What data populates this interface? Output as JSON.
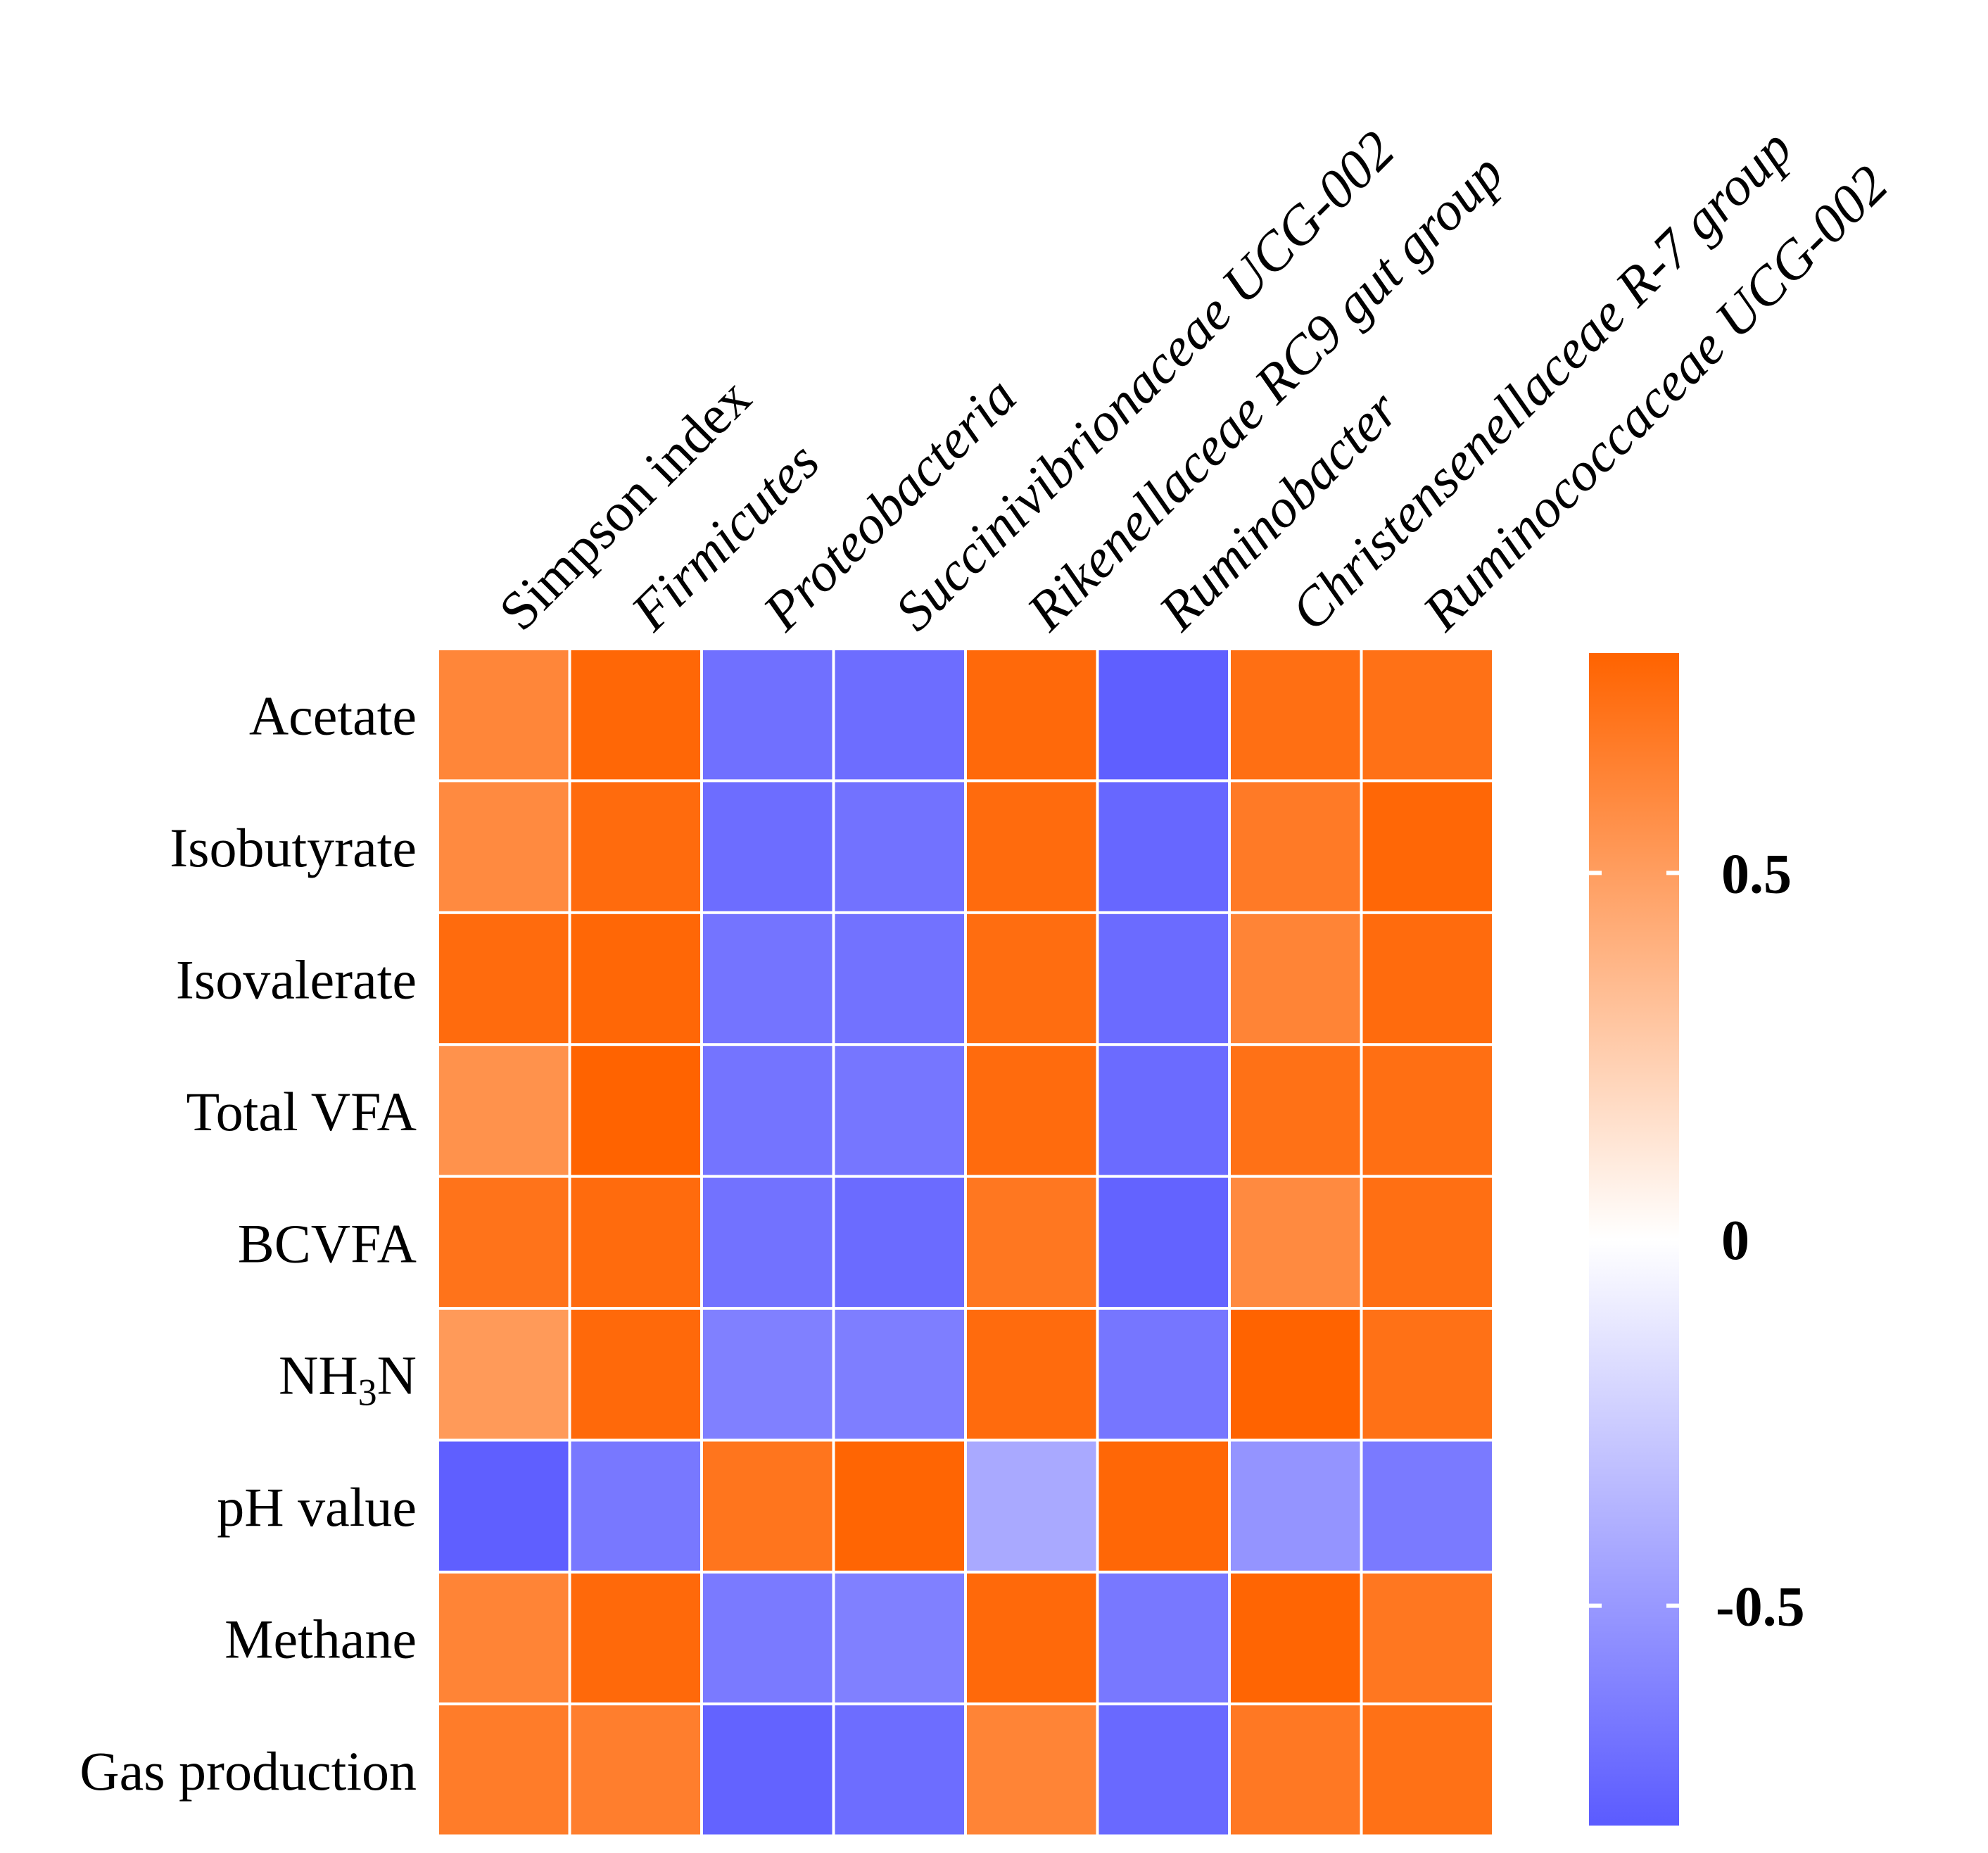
{
  "chart_data": {
    "type": "heatmap",
    "title": "",
    "columns": [
      {
        "label": "Simpson index",
        "italic": false
      },
      {
        "label": "Firmicutes",
        "italic": true
      },
      {
        "label": "Proteobacteria",
        "italic": true
      },
      {
        "label": "Succinivibrionaceae UCG-002",
        "italic": true
      },
      {
        "label": "Rikenellaceae RC9 gut group",
        "italic": true
      },
      {
        "label": "Ruminobacter",
        "italic": true
      },
      {
        "label": "Christensenellaceae R-7 group",
        "italic": true
      },
      {
        "label": "Ruminococcaceae UCG-002",
        "italic": true
      }
    ],
    "rows": [
      {
        "label": "Acetate"
      },
      {
        "label": "Isobutyrate"
      },
      {
        "label": "Isovalerate"
      },
      {
        "label": "Total VFA"
      },
      {
        "label": "BCVFA"
      },
      {
        "label": "NH",
        "sub": "3",
        "tail": "N"
      },
      {
        "label": "pH value"
      },
      {
        "label": "Methane"
      },
      {
        "label": "Gas production"
      }
    ],
    "values": [
      [
        0.62,
        0.78,
        -0.7,
        -0.71,
        0.77,
        -0.78,
        0.74,
        0.73
      ],
      [
        0.6,
        0.76,
        -0.71,
        -0.69,
        0.76,
        -0.74,
        0.68,
        0.78
      ],
      [
        0.76,
        0.78,
        -0.68,
        -0.69,
        0.75,
        -0.72,
        0.63,
        0.76
      ],
      [
        0.56,
        0.82,
        -0.68,
        -0.67,
        0.76,
        -0.72,
        0.73,
        0.74
      ],
      [
        0.72,
        0.76,
        -0.69,
        -0.72,
        0.7,
        -0.76,
        0.6,
        0.74
      ],
      [
        0.52,
        0.77,
        -0.62,
        -0.63,
        0.76,
        -0.67,
        0.8,
        0.73
      ],
      [
        -0.78,
        -0.66,
        0.71,
        0.79,
        -0.42,
        0.78,
        -0.52,
        -0.65
      ],
      [
        0.63,
        0.77,
        -0.65,
        -0.62,
        0.77,
        -0.66,
        0.79,
        0.7
      ],
      [
        0.67,
        0.66,
        -0.76,
        -0.71,
        0.63,
        -0.73,
        0.69,
        0.73
      ]
    ],
    "colorbar": {
      "range": [
        -0.8,
        0.8
      ],
      "ticks": [
        0.5,
        0,
        -0.5
      ],
      "tick_labels": [
        "0.5",
        "0",
        "-0.5"
      ],
      "colors": {
        "low": "#5b5bff",
        "mid": "#ffffff",
        "high": "#ff6300"
      }
    }
  }
}
